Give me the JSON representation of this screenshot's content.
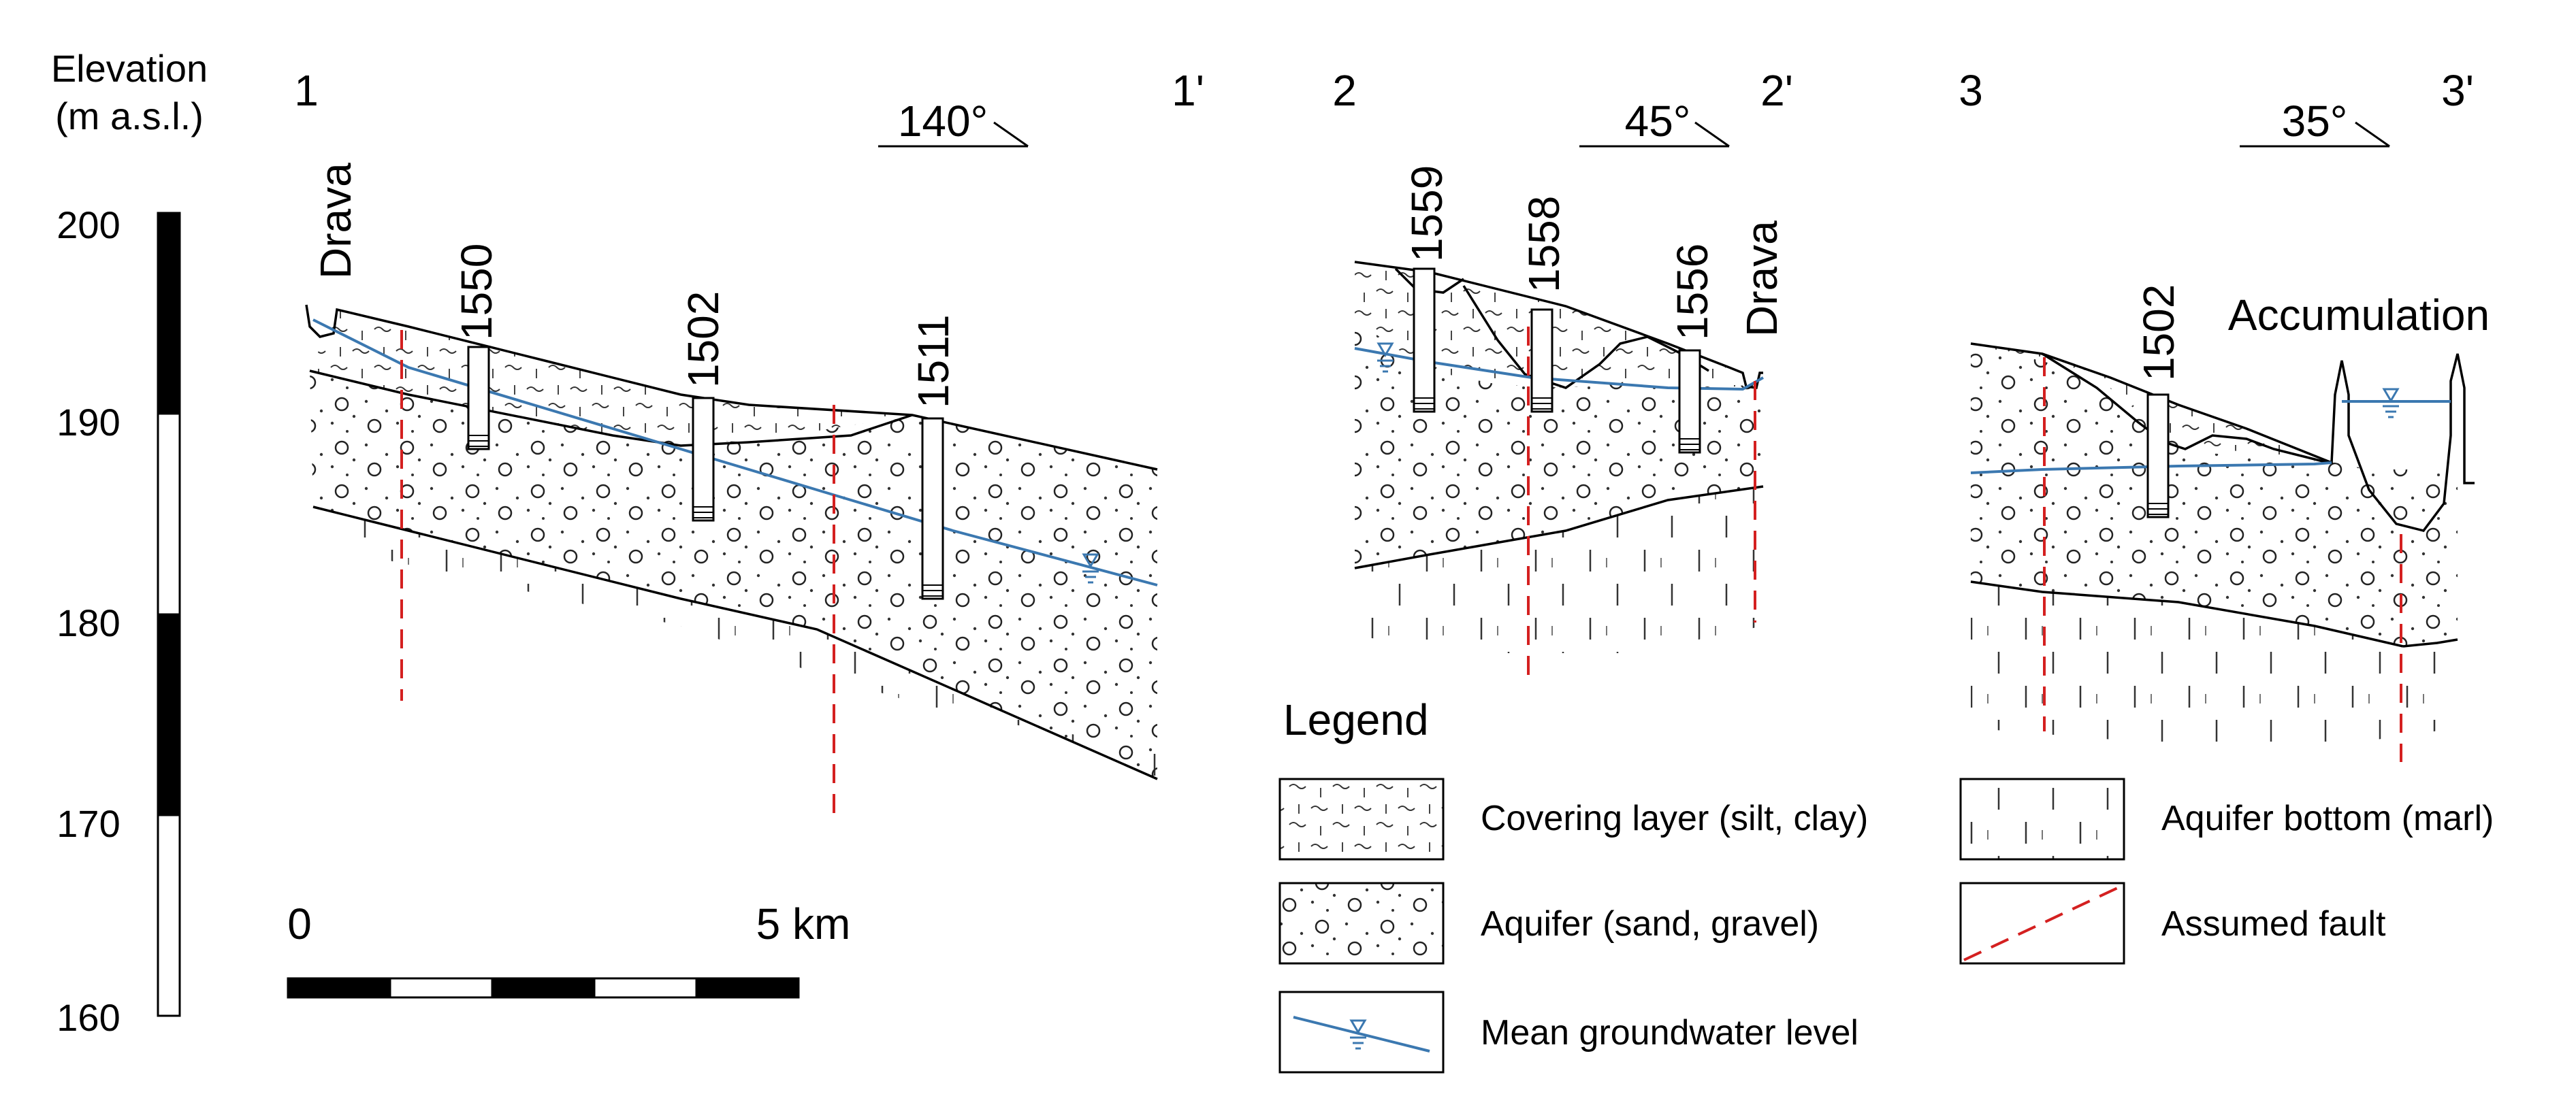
{
  "elevation_scale": {
    "title_line1": "Elevation",
    "title_line2": "(m a.s.l.)",
    "ticks": [
      "200",
      "190",
      "180",
      "170",
      "160"
    ]
  },
  "distance_scale": {
    "start_label": "0",
    "end_label": "5 km"
  },
  "sections": [
    {
      "start_label": "1",
      "end_label": "1'",
      "azimuth": "140°",
      "features": [
        "Drava",
        "1550",
        "1502",
        "1511"
      ]
    },
    {
      "start_label": "2",
      "end_label": "2'",
      "azimuth": "45°",
      "features": [
        "1559",
        "1558",
        "1556",
        "Drava"
      ]
    },
    {
      "start_label": "3",
      "end_label": "3'",
      "azimuth": "35°",
      "features": [
        "1502",
        "Accumulation"
      ]
    }
  ],
  "legend": {
    "title": "Legend",
    "items": [
      {
        "key": "covering",
        "label": "Covering layer (silt, clay)"
      },
      {
        "key": "aquifer",
        "label": "Aquifer (sand, gravel)"
      },
      {
        "key": "groundwater",
        "label": "Mean groundwater level"
      },
      {
        "key": "bottom",
        "label": "Aquifer bottom (marl)"
      },
      {
        "key": "fault",
        "label": "Assumed fault"
      }
    ]
  },
  "colors": {
    "line": "#000000",
    "groundwater": "#3b78b0",
    "fault": "#d42020",
    "bar_dark": "#000000",
    "bar_light": "#ffffff"
  }
}
